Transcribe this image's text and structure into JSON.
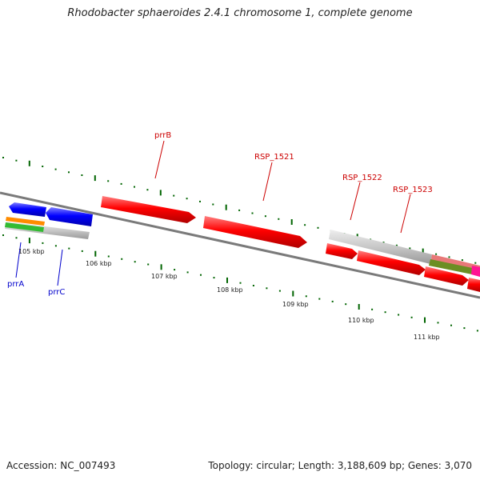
{
  "title": "Rhodobacter sphaeroides 2.4.1 chromosome 1, complete genome",
  "accession": "Accession: NC_007493",
  "summary": "Topology: circular; Length: 3,188,609 bp; Genes: 3,070",
  "kbp_labels": [
    "105 kbp",
    "106 kbp",
    "107 kbp",
    "108 kbp",
    "109 kbp",
    "110 kbp",
    "111 kbp"
  ],
  "gene_labels_top": [
    "prrB",
    "RSP_1521",
    "RSP_1522",
    "RSP_1523"
  ],
  "gene_labels_bottom": [
    "prrA",
    "prrC"
  ],
  "colors": {
    "forward_gene": "#ff0000",
    "reverse_gene": "#0000ff",
    "label_top": "#cc0000",
    "label_bottom": "#0000cc",
    "tick": "#006400",
    "backbone": "#888888",
    "gray_feature": "#c8c8c8",
    "orange_feature": "#ff8c00",
    "green_feature": "#33bb33",
    "pink_feature": "#e87878",
    "olive_feature": "#6b8e23",
    "magenta_feature": "#ff1493"
  }
}
